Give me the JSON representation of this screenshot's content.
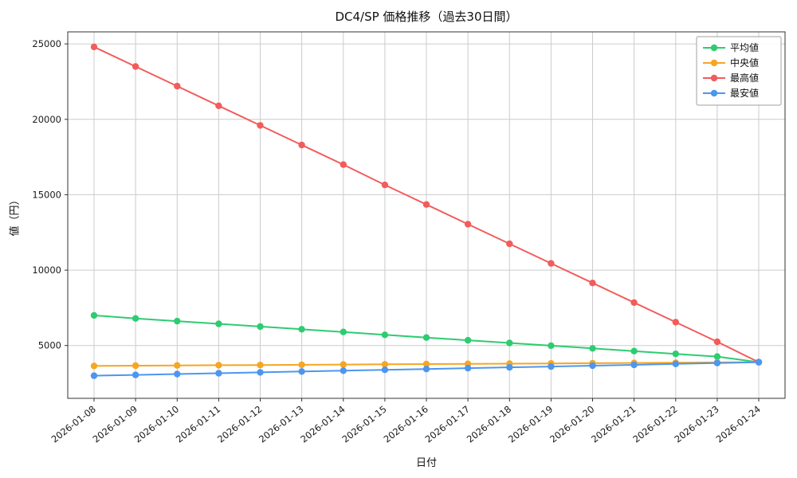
{
  "chart_data": {
    "type": "line",
    "title": "DC4/SP 価格推移（過去30日間）",
    "xlabel": "日付",
    "ylabel": "値（円）",
    "categories": [
      "2026-01-08",
      "2026-01-09",
      "2026-01-10",
      "2026-01-11",
      "2026-01-12",
      "2026-01-13",
      "2026-01-14",
      "2026-01-15",
      "2026-01-16",
      "2026-01-17",
      "2026-01-18",
      "2026-01-19",
      "2026-01-20",
      "2026-01-21",
      "2026-01-22",
      "2026-01-23",
      "2026-01-24"
    ],
    "yticks": [
      5000,
      10000,
      15000,
      20000,
      25000
    ],
    "ylim": [
      1500,
      25800
    ],
    "grid": true,
    "legend_position": "upper right",
    "series": [
      {
        "name": "平均値",
        "color": "#2ecc71",
        "values": [
          7000,
          6800,
          6620,
          6440,
          6260,
          6080,
          5900,
          5710,
          5530,
          5350,
          5170,
          4990,
          4810,
          4630,
          4450,
          4270,
          3900
        ]
      },
      {
        "name": "中央値",
        "color": "#f5a623",
        "values": [
          3650,
          3665,
          3680,
          3695,
          3710,
          3725,
          3740,
          3755,
          3770,
          3785,
          3800,
          3815,
          3830,
          3845,
          3860,
          3880,
          3900
        ]
      },
      {
        "name": "最高値",
        "color": "#f25c5c",
        "values": [
          24800,
          23500,
          22200,
          20900,
          19600,
          18300,
          17000,
          15650,
          14350,
          13050,
          11750,
          10450,
          9150,
          7850,
          6550,
          5250,
          3900
        ]
      },
      {
        "name": "最安値",
        "color": "#4d96f0",
        "values": [
          3000,
          3055,
          3110,
          3165,
          3220,
          3280,
          3335,
          3390,
          3445,
          3500,
          3555,
          3610,
          3665,
          3720,
          3780,
          3840,
          3900
        ]
      }
    ]
  }
}
